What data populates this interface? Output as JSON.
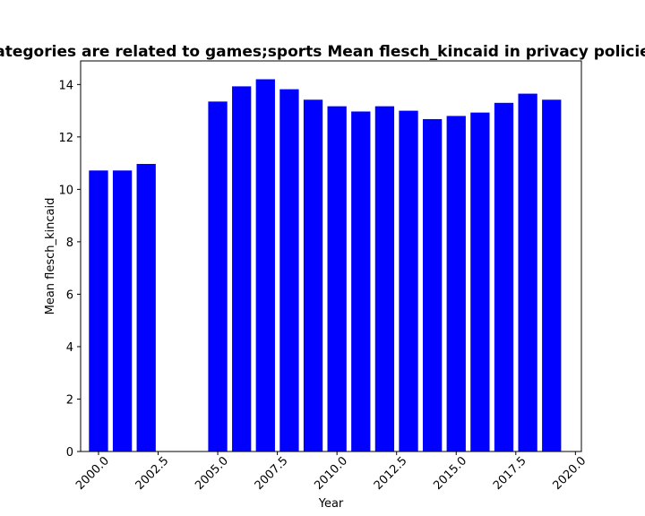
{
  "chart_data": {
    "type": "bar",
    "title": "categories are related to games;sports Mean flesch_kincaid in privacy policies",
    "xlabel": "Year",
    "ylabel": "Mean flesch_kincaid",
    "bar_color": "#0000ff",
    "x": [
      2000,
      2001,
      2002,
      2005,
      2006,
      2007,
      2008,
      2009,
      2010,
      2011,
      2012,
      2013,
      2014,
      2015,
      2016,
      2017,
      2018,
      2019
    ],
    "values": [
      10.72,
      10.72,
      10.97,
      13.35,
      13.93,
      14.2,
      13.82,
      13.42,
      13.17,
      12.97,
      13.17,
      13.0,
      12.68,
      12.8,
      12.93,
      13.3,
      13.65,
      13.42
    ],
    "xlim": [
      1999.25,
      2020.25
    ],
    "ylim": [
      0,
      14.9
    ],
    "xticks": [
      2000.0,
      2002.5,
      2005.0,
      2007.5,
      2010.0,
      2012.5,
      2015.0,
      2017.5,
      2020.0
    ],
    "xtick_labels": [
      "2000.0",
      "2002.5",
      "2005.0",
      "2007.5",
      "2010.0",
      "2012.5",
      "2015.0",
      "2017.5",
      "2020.0"
    ],
    "yticks": [
      0,
      2,
      4,
      6,
      8,
      10,
      12,
      14
    ],
    "ytick_labels": [
      "0",
      "2",
      "4",
      "6",
      "8",
      "10",
      "12",
      "14"
    ],
    "grid": false,
    "legend": false
  }
}
